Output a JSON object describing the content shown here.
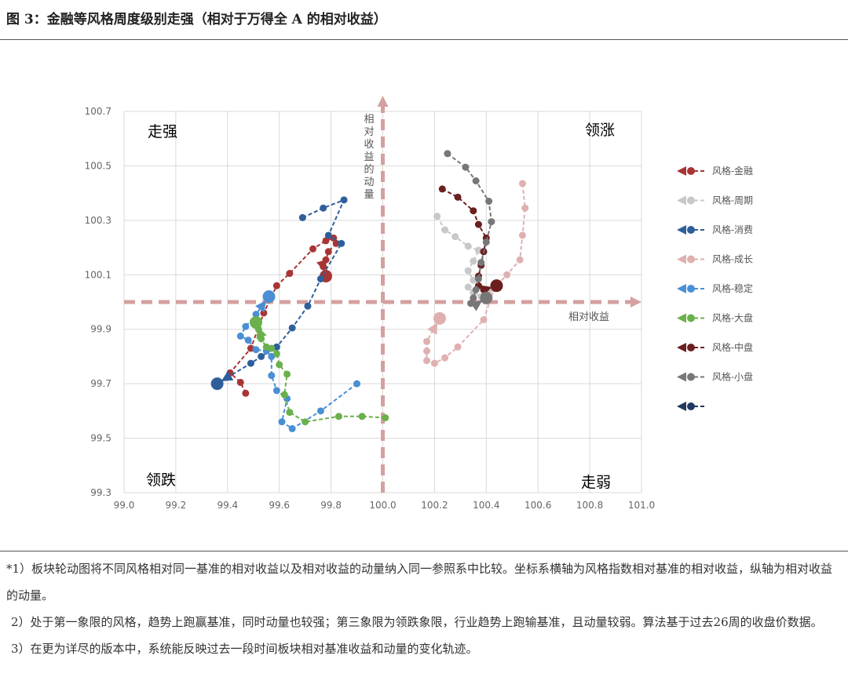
{
  "title": "图 3：金融等风格周度级别走强（相对于万得全 A 的相对收益）",
  "notes": [
    "*1）板块轮动图将不同风格相对同一基准的相对收益以及相对收益的动量纳入同一参照系中比较。坐标系横轴为风格指数相对基准的相对收益，纵轴为相对收益的动量。",
    "2）处于第一象限的风格，趋势上跑赢基准，同时动量也较强；第三象限为领跌象限，行业趋势上跑输基准，且动量较弱。算法基于过去26周的收盘价数据。",
    "3）在更为详尽的版本中，系统能反映过去一段时间板块相对基准收益和动量的变化轨迹。"
  ],
  "chart_data": {
    "type": "scatter",
    "xlabel": "相对收益",
    "ylabel": "相对收益的动量",
    "xlim": [
      99.0,
      101.0
    ],
    "ylim": [
      99.3,
      100.7
    ],
    "x_ticks": [
      "99.0",
      "99.2",
      "99.4",
      "99.6",
      "99.8",
      "100.0",
      "100.2",
      "100.4",
      "100.6",
      "100.8",
      "101.0"
    ],
    "y_ticks": [
      "100.7",
      "100.5",
      "100.3",
      "100.1",
      "99.9",
      "99.7",
      "99.5",
      "99.3"
    ],
    "grid": true,
    "legend_position": "right",
    "quadrants": {
      "top_left": {
        "label": "走强",
        "color": "#e07070"
      },
      "top_right": {
        "label": "领涨",
        "color": "#b84a4a"
      },
      "bottom_left": {
        "label": "领跌",
        "color": "#6ab04c"
      },
      "bottom_right": {
        "label": "走弱",
        "color": "#2e5f9a"
      }
    },
    "series": [
      {
        "name": "风格-金融",
        "color": "#a93434",
        "points": [
          [
            99.47,
            99.665
          ],
          [
            99.45,
            99.705
          ],
          [
            99.41,
            99.74
          ],
          [
            99.49,
            99.83
          ],
          [
            99.54,
            99.96
          ],
          [
            99.59,
            100.06
          ],
          [
            99.64,
            100.105
          ],
          [
            99.73,
            100.195
          ],
          [
            99.78,
            100.225
          ],
          [
            99.81,
            100.235
          ],
          [
            99.82,
            100.215
          ],
          [
            99.79,
            100.185
          ],
          [
            99.78,
            100.155
          ],
          [
            99.77,
            100.13
          ],
          [
            99.78,
            100.095
          ]
        ]
      },
      {
        "name": "风格-周期",
        "color": "#c8c8c8",
        "points": [
          [
            100.21,
            100.315
          ],
          [
            100.24,
            100.265
          ],
          [
            100.28,
            100.24
          ],
          [
            100.33,
            100.205
          ],
          [
            100.37,
            100.19
          ],
          [
            100.35,
            100.15
          ],
          [
            100.33,
            100.115
          ],
          [
            100.35,
            100.08
          ],
          [
            100.33,
            100.055
          ],
          [
            100.35,
            100.035
          ],
          [
            100.38,
            100.02
          ],
          [
            100.4,
            100.03
          ],
          [
            100.44,
            100.06
          ]
        ]
      },
      {
        "name": "风格-消费",
        "color": "#2e5f9a",
        "points": [
          [
            99.69,
            100.31
          ],
          [
            99.77,
            100.345
          ],
          [
            99.85,
            100.375
          ],
          [
            99.79,
            100.245
          ],
          [
            99.84,
            100.215
          ],
          [
            99.76,
            100.085
          ],
          [
            99.71,
            99.985
          ],
          [
            99.65,
            99.905
          ],
          [
            99.59,
            99.835
          ],
          [
            99.53,
            99.8
          ],
          [
            99.49,
            99.775
          ],
          [
            99.36,
            99.7
          ]
        ]
      },
      {
        "name": "风格-成长",
        "color": "#e0b0b0",
        "points": [
          [
            100.54,
            100.435
          ],
          [
            100.55,
            100.345
          ],
          [
            100.54,
            100.245
          ],
          [
            100.53,
            100.155
          ],
          [
            100.48,
            100.1
          ],
          [
            100.43,
            100.05
          ],
          [
            100.39,
            99.935
          ],
          [
            100.29,
            99.835
          ],
          [
            100.24,
            99.795
          ],
          [
            100.2,
            99.775
          ],
          [
            100.17,
            99.785
          ],
          [
            100.17,
            99.82
          ],
          [
            100.17,
            99.855
          ],
          [
            100.22,
            99.94
          ]
        ]
      },
      {
        "name": "风格-稳定",
        "color": "#4a8fd4",
        "points": [
          [
            99.9,
            99.7
          ],
          [
            99.76,
            99.6
          ],
          [
            99.65,
            99.535
          ],
          [
            99.61,
            99.56
          ],
          [
            99.63,
            99.645
          ],
          [
            99.59,
            99.675
          ],
          [
            99.57,
            99.73
          ],
          [
            99.57,
            99.8
          ],
          [
            99.55,
            99.82
          ],
          [
            99.51,
            99.825
          ],
          [
            99.48,
            99.86
          ],
          [
            99.45,
            99.875
          ],
          [
            99.47,
            99.91
          ],
          [
            99.51,
            99.955
          ],
          [
            99.56,
            100.02
          ]
        ]
      },
      {
        "name": "风格-大盘",
        "color": "#6ab04c",
        "points": [
          [
            100.01,
            99.575
          ],
          [
            99.92,
            99.58
          ],
          [
            99.83,
            99.58
          ],
          [
            99.7,
            99.56
          ],
          [
            99.64,
            99.595
          ],
          [
            99.62,
            99.66
          ],
          [
            99.63,
            99.735
          ],
          [
            99.6,
            99.77
          ],
          [
            99.59,
            99.81
          ],
          [
            99.57,
            99.83
          ],
          [
            99.55,
            99.835
          ],
          [
            99.53,
            99.865
          ],
          [
            99.52,
            99.9
          ],
          [
            99.51,
            99.925
          ]
        ]
      },
      {
        "name": "风格-中盘",
        "color": "#6b1f1f",
        "points": [
          [
            100.23,
            100.415
          ],
          [
            100.29,
            100.385
          ],
          [
            100.35,
            100.335
          ],
          [
            100.37,
            100.285
          ],
          [
            100.4,
            100.235
          ],
          [
            100.39,
            100.185
          ],
          [
            100.38,
            100.135
          ],
          [
            100.37,
            100.095
          ],
          [
            100.37,
            100.06
          ],
          [
            100.39,
            100.045
          ],
          [
            100.44,
            100.06
          ]
        ]
      },
      {
        "name": "风格-小盘",
        "color": "#777777",
        "points": [
          [
            100.25,
            100.545
          ],
          [
            100.32,
            100.495
          ],
          [
            100.36,
            100.445
          ],
          [
            100.41,
            100.37
          ],
          [
            100.42,
            100.295
          ],
          [
            100.4,
            100.22
          ],
          [
            100.38,
            100.145
          ],
          [
            100.37,
            100.085
          ],
          [
            100.36,
            100.045
          ],
          [
            100.35,
            100.015
          ],
          [
            100.34,
            99.995
          ],
          [
            100.36,
            99.99
          ],
          [
            100.4,
            100.015
          ]
        ]
      },
      {
        "name": "",
        "color": "#1f3a5f",
        "points": []
      }
    ]
  }
}
